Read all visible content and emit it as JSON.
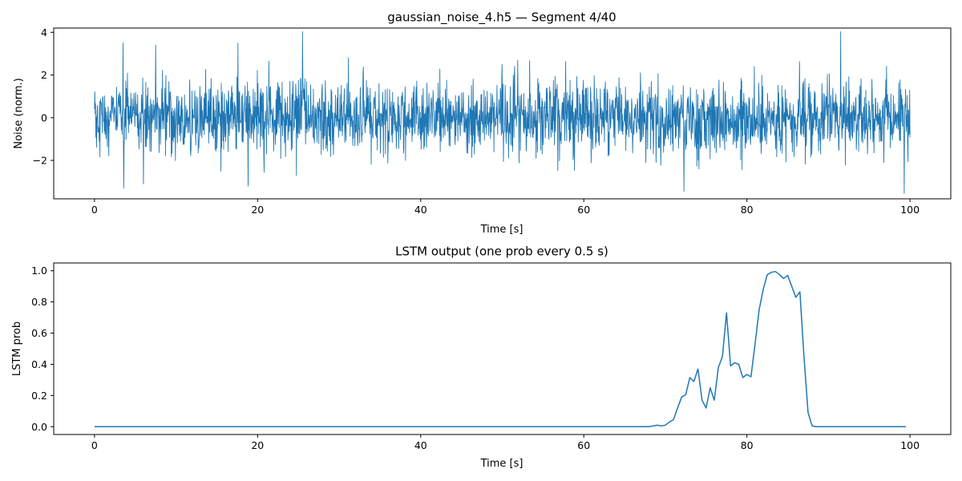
{
  "chart_data": [
    {
      "type": "line",
      "title": "gaussian_noise_4.h5 — Segment 4/40",
      "xlabel": "Time [s]",
      "ylabel": "Noise (norm.)",
      "xlim": [
        -5,
        105
      ],
      "ylim": [
        -3.8,
        4.2
      ],
      "xticks": [
        0,
        20,
        40,
        60,
        80,
        100
      ],
      "yticks": [
        -2,
        0,
        2,
        4
      ],
      "xtick_labels": [
        "0",
        "20",
        "40",
        "60",
        "80",
        "100"
      ],
      "ytick_labels": [
        "−2",
        "0",
        "2",
        "4"
      ],
      "color": "#1f77b4",
      "grid": false,
      "series": [
        {
          "kind": "gaussian-noise",
          "x_range": [
            0,
            100
          ],
          "mean": 0,
          "std": 0.85,
          "n_points": 2400,
          "peaks": [
            {
              "x": 25.5,
              "y": 4.03
            },
            {
              "x": 91.5,
              "y": 4.03
            },
            {
              "x": 3.5,
              "y": 3.5
            },
            {
              "x": 7.5,
              "y": 3.4
            },
            {
              "x": 17.6,
              "y": 3.5
            },
            {
              "x": 72.3,
              "y": -3.45
            },
            {
              "x": 99.3,
              "y": -3.55
            },
            {
              "x": 3.6,
              "y": -3.3
            },
            {
              "x": 6.0,
              "y": -3.1
            }
          ]
        }
      ]
    },
    {
      "type": "line",
      "title": "LSTM output (one prob every 0.5 s)",
      "xlabel": "Time [s]",
      "ylabel": "LSTM prob",
      "xlim": [
        -5,
        105
      ],
      "ylim": [
        -0.05,
        1.05
      ],
      "xticks": [
        0,
        20,
        40,
        60,
        80,
        100
      ],
      "yticks": [
        0.0,
        0.2,
        0.4,
        0.6,
        0.8,
        1.0
      ],
      "xtick_labels": [
        "0",
        "20",
        "40",
        "60",
        "80",
        "100"
      ],
      "ytick_labels": [
        "0.0",
        "0.2",
        "0.4",
        "0.6",
        "0.8",
        "1.0"
      ],
      "color": "#1f77b4",
      "grid": false,
      "series": [
        {
          "x": [
            0,
            68.0,
            69.0,
            69.5,
            70.0,
            70.5,
            71.0,
            71.5,
            72.0,
            72.5,
            73.0,
            73.5,
            74.0,
            74.5,
            75.0,
            75.5,
            76.0,
            76.5,
            77.0,
            77.5,
            78.0,
            78.5,
            79.0,
            79.5,
            80.0,
            80.5,
            81.0,
            81.5,
            82.0,
            82.5,
            83.0,
            83.5,
            84.0,
            84.5,
            85.0,
            85.5,
            86.0,
            86.5,
            87.0,
            87.5,
            88.0,
            88.5,
            99.5
          ],
          "y": [
            0.0,
            0.0,
            0.01,
            0.005,
            0.01,
            0.03,
            0.045,
            0.12,
            0.19,
            0.205,
            0.315,
            0.29,
            0.37,
            0.17,
            0.12,
            0.25,
            0.17,
            0.38,
            0.45,
            0.73,
            0.39,
            0.41,
            0.4,
            0.315,
            0.335,
            0.32,
            0.53,
            0.75,
            0.88,
            0.975,
            0.99,
            0.995,
            0.975,
            0.95,
            0.97,
            0.9,
            0.83,
            0.865,
            0.45,
            0.09,
            0.005,
            0.0,
            0.0
          ]
        }
      ]
    }
  ]
}
